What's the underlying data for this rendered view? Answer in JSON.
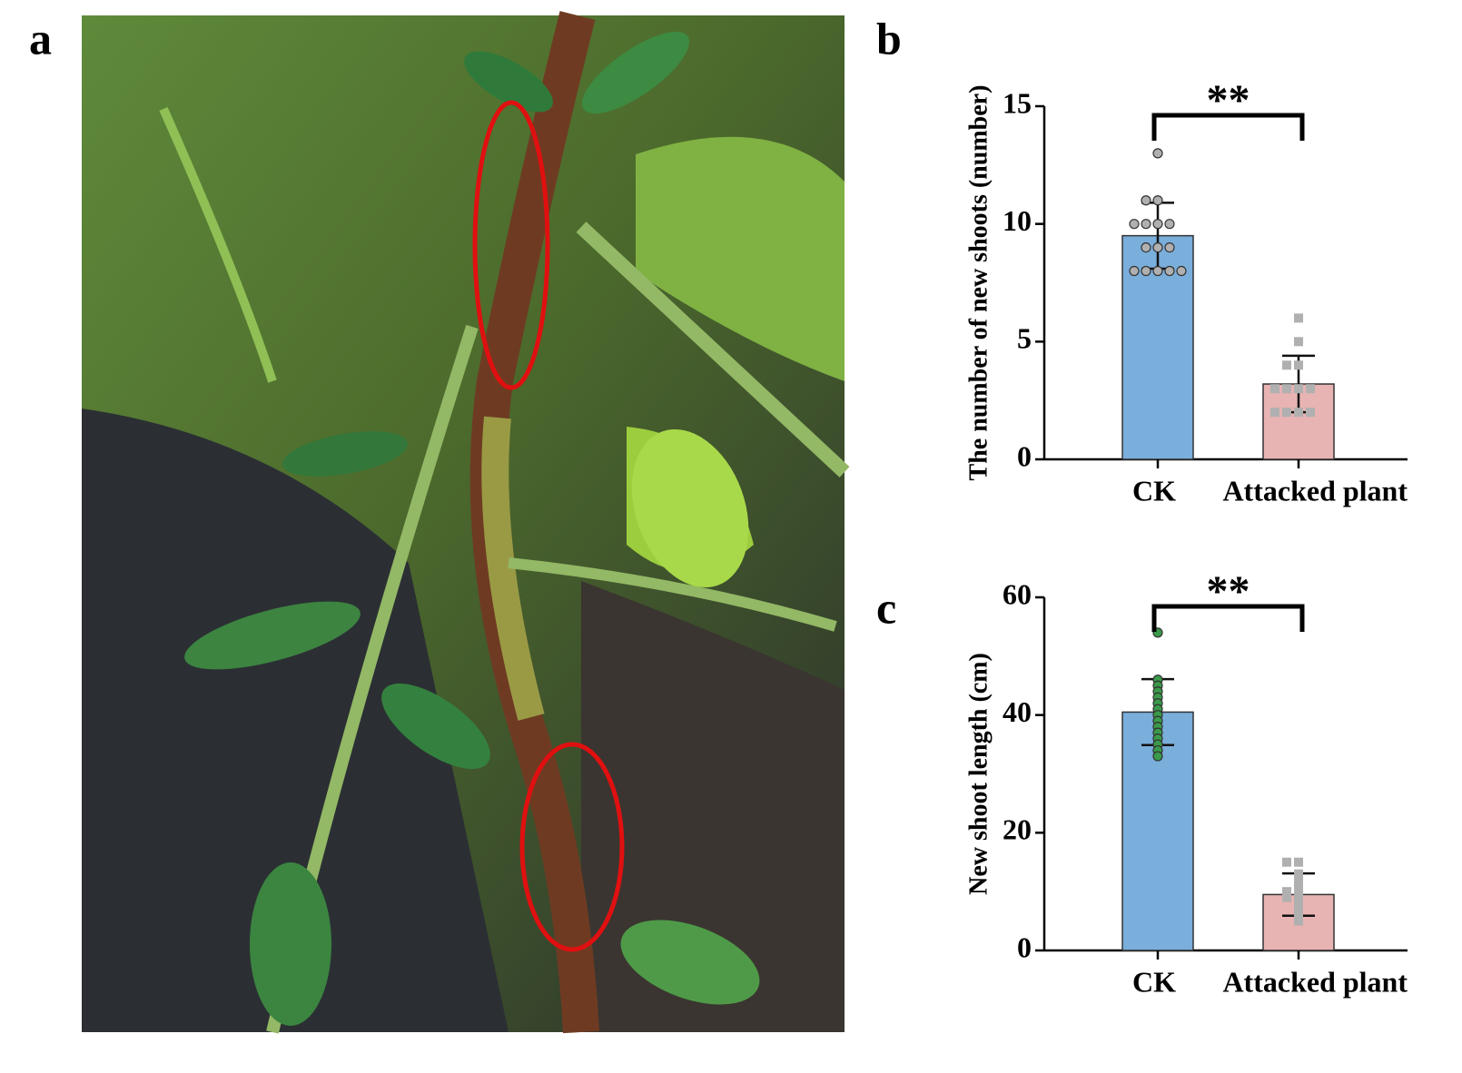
{
  "photo": {
    "panel_label": "a"
  },
  "chart_data": [
    {
      "type": "bar",
      "panel_label": "b",
      "ylabel": "The number of new shoots (number)",
      "categories": [
        "CK",
        "Attacked plant"
      ],
      "values": [
        9.5,
        3.2
      ],
      "errors": [
        1.4,
        1.2
      ],
      "colors": [
        "#7aaedb",
        "#e8b3b3"
      ],
      "point_colors": [
        "#b0b0b0",
        "#b0b0b0"
      ],
      "points": [
        [
          13,
          11,
          11,
          10,
          10,
          10,
          10,
          9,
          9,
          9,
          8,
          8,
          8,
          8,
          8
        ],
        [
          6,
          5,
          4,
          4,
          3,
          3,
          3,
          3,
          2,
          2,
          2,
          2
        ]
      ],
      "significance": "**",
      "ylim": [
        0,
        15
      ],
      "yticks": [
        0,
        5,
        10,
        15
      ]
    },
    {
      "type": "bar",
      "panel_label": "c",
      "ylabel": "New shoot length (cm)",
      "categories": [
        "CK",
        "Attacked plant"
      ],
      "values": [
        40.5,
        9.5
      ],
      "errors": [
        5.6,
        3.6
      ],
      "colors": [
        "#7aaedb",
        "#e8b3b3"
      ],
      "point_colors": [
        "#3a9a4a",
        "#b0b0b0"
      ],
      "points": [
        [
          54,
          46,
          45,
          44,
          43,
          42,
          41,
          40,
          39,
          38,
          37,
          36,
          35,
          34,
          33
        ],
        [
          15,
          15,
          13,
          12,
          11,
          10,
          10,
          9,
          9,
          8,
          7,
          6,
          5
        ]
      ],
      "significance": "**",
      "ylim": [
        0,
        60
      ],
      "yticks": [
        0,
        20,
        40,
        60
      ]
    }
  ]
}
